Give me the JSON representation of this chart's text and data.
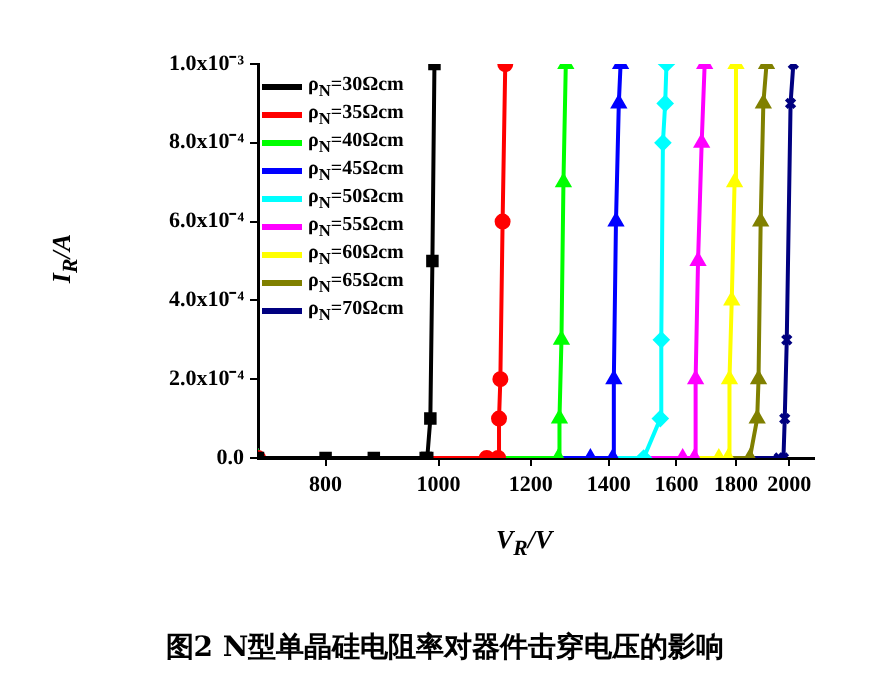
{
  "chart_data": {
    "type": "line",
    "title": "图2 N型单晶硅电阻率对器件击穿电压的影响",
    "xlabel": "V$_{R}$/V",
    "ylabel": "I$_{R}$/A",
    "log": "x",
    "xlim": [
      700,
      2100
    ],
    "xticks": [
      800,
      1000,
      1200,
      1400,
      1600,
      1800,
      2000
    ],
    "ylim": [
      0,
      0.001
    ],
    "yticks": [
      {
        "value": 0,
        "label": "0.0"
      },
      {
        "value": 0.0002,
        "label": "2.0x10⁻⁴"
      },
      {
        "value": 0.0004,
        "label": "4.0x10⁻⁴"
      },
      {
        "value": 0.0006,
        "label": "6.0x10⁻⁴"
      },
      {
        "value": 0.0008,
        "label": "8.0x10⁻⁴"
      },
      {
        "value": 0.001,
        "label": "1.0x10⁻³"
      }
    ],
    "grid": false,
    "legend": "top left",
    "line_style": "solid",
    "series": [
      {
        "name": "ρ$_{N}$=30Ωcm",
        "color": "#000000",
        "marker": "square",
        "x": [
          700,
          800,
          880,
          975,
          978,
          984,
          988,
          992
        ],
        "values": [
          0,
          0,
          0,
          0,
          0,
          0.0001,
          0.0005,
          0.001
        ]
      },
      {
        "name": "ρ$_{N}$=35Ωcm",
        "color": "#ff0000",
        "marker": "circle",
        "x": [
          700,
          1100,
          1125,
          1127,
          1130,
          1135,
          1141
        ],
        "values": [
          0,
          0,
          0,
          0.0001,
          0.0002,
          0.0006,
          0.001
        ]
      },
      {
        "name": "ρ$_{N}$=40Ωcm",
        "color": "#00ff00",
        "marker": "triangle",
        "x": [
          700,
          1267,
          1270,
          1275,
          1280,
          1286
        ],
        "values": [
          0,
          0,
          0.0001,
          0.0003,
          0.0007,
          0.001
        ]
      },
      {
        "name": "ρ$_{N}$=45Ωcm",
        "color": "#0000ff",
        "marker": "triangle",
        "x": [
          700,
          1350,
          1411,
          1414,
          1420,
          1428,
          1433
        ],
        "values": [
          0,
          0,
          0,
          0.0002,
          0.0006,
          0.0009,
          0.001
        ]
      },
      {
        "name": "ρ$_{N}$=50Ωcm",
        "color": "#00ffff",
        "marker": "diamond",
        "x": [
          700,
          1500,
          1550,
          1553,
          1558,
          1565,
          1569
        ],
        "values": [
          0,
          0,
          0.0001,
          0.0003,
          0.0008,
          0.0009,
          0.001
        ]
      },
      {
        "name": "ρ$_{N}$=55Ωcm",
        "color": "#ff00ff",
        "marker": "triangle",
        "x": [
          700,
          1620,
          1658,
          1662,
          1670,
          1682,
          1692
        ],
        "values": [
          0,
          0,
          0,
          0.0002,
          0.0005,
          0.0008,
          0.001
        ]
      },
      {
        "name": "ρ$_{N}$=60Ωcm",
        "color": "#ffff00",
        "marker": "triangle",
        "x": [
          700,
          1740,
          1772,
          1777,
          1785,
          1795,
          1800
        ],
        "values": [
          0,
          0,
          0,
          0.0002,
          0.0004,
          0.0007,
          0.001
        ]
      },
      {
        "name": "ρ$_{N}$=65Ωcm",
        "color": "#808000",
        "marker": "triangle",
        "x": [
          700,
          1850,
          1877,
          1882,
          1890,
          1900,
          1912
        ],
        "values": [
          0,
          0,
          0.0001,
          0.0002,
          0.0006,
          0.0009,
          0.001
        ]
      },
      {
        "name": "ρ$_{N}$=70Ωcm",
        "color": "#000080",
        "marker": "cross",
        "x": [
          700,
          1960,
          1977,
          1982,
          1990,
          2005,
          2016
        ],
        "values": [
          0,
          0,
          0,
          0.0001,
          0.0003,
          0.0009,
          0.001
        ]
      }
    ]
  }
}
